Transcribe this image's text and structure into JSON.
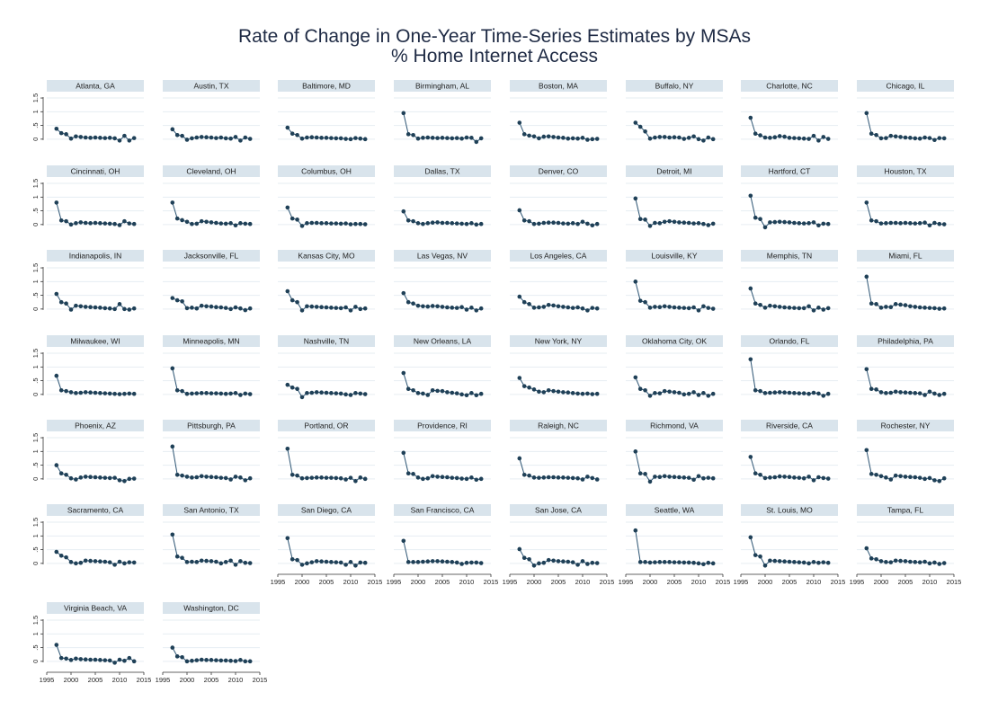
{
  "title_line1": "Rate of Change in One-Year Time-Series Estimates by MSAs",
  "title_line2": "% Home Internet Access",
  "colors": {
    "marker": "#1f4057",
    "line": "#2c5473",
    "strip": "#d9e4ec",
    "grid": "#e6edf2",
    "axis": "#333333"
  },
  "chart_data": {
    "type": "line",
    "layout": "small-multiples",
    "title": "Rate of Change in One-Year Time-Series Estimates by MSAs",
    "subtitle": "% Home Internet Access",
    "x": [
      1997,
      1998,
      1999,
      2000,
      2001,
      2002,
      2003,
      2004,
      2005,
      2006,
      2007,
      2008,
      2009,
      2010,
      2011,
      2012,
      2013
    ],
    "xticks": [
      1995,
      2000,
      2005,
      2010,
      2015
    ],
    "xlim": [
      1995,
      2015
    ],
    "yticks": [
      0,
      0.5,
      1,
      1.5
    ],
    "ytick_labels": [
      "0",
      ".5",
      "1",
      "1.5"
    ],
    "ylim": [
      -0.3,
      1.6
    ],
    "grid": true,
    "panels": [
      {
        "name": "Atlanta, GA",
        "values": [
          0.38,
          0.22,
          0.18,
          0.02,
          0.1,
          0.08,
          0.06,
          0.05,
          0.06,
          0.05,
          0.04,
          0.05,
          0.03,
          -0.05,
          0.12,
          -0.05,
          0.04
        ]
      },
      {
        "name": "Austin, TX",
        "values": [
          0.36,
          0.15,
          0.12,
          -0.02,
          0.03,
          0.06,
          0.08,
          0.07,
          0.06,
          0.04,
          0.06,
          0.03,
          0.02,
          0.08,
          -0.05,
          0.06,
          0.01
        ]
      },
      {
        "name": "Baltimore, MD",
        "values": [
          0.42,
          0.2,
          0.15,
          0.02,
          0.06,
          0.07,
          0.06,
          0.05,
          0.05,
          0.04,
          0.03,
          0.03,
          0.01,
          0.0,
          0.04,
          0.02,
          0.0
        ]
      },
      {
        "name": "Birmingham, AL",
        "values": [
          0.95,
          0.18,
          0.15,
          0.02,
          0.05,
          0.06,
          0.05,
          0.04,
          0.05,
          0.04,
          0.03,
          0.04,
          0.02,
          0.06,
          0.05,
          -0.1,
          0.03
        ]
      },
      {
        "name": "Boston, MA",
        "values": [
          0.6,
          0.18,
          0.13,
          0.1,
          0.03,
          0.09,
          0.1,
          0.08,
          0.06,
          0.05,
          0.02,
          0.03,
          0.02,
          0.05,
          -0.02,
          0.0,
          0.01
        ]
      },
      {
        "name": "Buffalo, NY",
        "values": [
          0.6,
          0.45,
          0.28,
          0.02,
          0.06,
          0.08,
          0.08,
          0.06,
          0.07,
          0.06,
          0.01,
          0.05,
          0.1,
          0.0,
          -0.05,
          0.06,
          0.0
        ]
      },
      {
        "name": "Charlotte, NC",
        "values": [
          0.78,
          0.2,
          0.14,
          0.06,
          0.05,
          0.07,
          0.11,
          0.09,
          0.05,
          0.04,
          0.03,
          0.02,
          0.01,
          0.12,
          -0.05,
          0.08,
          0.01
        ]
      },
      {
        "name": "Chicago, IL",
        "values": [
          0.95,
          0.2,
          0.15,
          0.03,
          0.04,
          0.12,
          0.1,
          0.08,
          0.06,
          0.05,
          0.03,
          0.02,
          0.06,
          0.04,
          -0.03,
          0.04,
          0.03
        ]
      },
      {
        "name": "Cincinnati, OH",
        "values": [
          0.8,
          0.15,
          0.12,
          0.0,
          0.05,
          0.08,
          0.06,
          0.05,
          0.06,
          0.05,
          0.04,
          0.03,
          0.02,
          -0.02,
          0.12,
          0.04,
          0.02
        ]
      },
      {
        "name": "Cleveland, OH",
        "values": [
          0.8,
          0.22,
          0.16,
          0.1,
          0.02,
          0.03,
          0.12,
          0.1,
          0.08,
          0.06,
          0.04,
          0.03,
          0.05,
          -0.03,
          0.05,
          0.03,
          0.02
        ]
      },
      {
        "name": "Columbus, OH",
        "values": [
          0.62,
          0.22,
          0.18,
          -0.05,
          0.05,
          0.06,
          0.06,
          0.05,
          0.05,
          0.04,
          0.04,
          0.03,
          0.04,
          0.01,
          0.02,
          0.02,
          0.01
        ]
      },
      {
        "name": "Dallas, TX",
        "values": [
          0.48,
          0.15,
          0.12,
          0.05,
          0.02,
          0.05,
          0.07,
          0.08,
          0.06,
          0.06,
          0.05,
          0.04,
          0.03,
          0.02,
          0.05,
          0.0,
          0.02
        ]
      },
      {
        "name": "Denver, CO",
        "values": [
          0.52,
          0.15,
          0.12,
          0.02,
          0.03,
          0.06,
          0.07,
          0.07,
          0.06,
          0.04,
          0.03,
          0.05,
          0.02,
          0.1,
          0.03,
          -0.03,
          0.02
        ]
      },
      {
        "name": "Detroit, MI",
        "values": [
          0.95,
          0.2,
          0.18,
          -0.05,
          0.06,
          0.05,
          0.1,
          0.12,
          0.1,
          0.08,
          0.07,
          0.06,
          0.04,
          0.05,
          0.02,
          -0.02,
          0.03
        ]
      },
      {
        "name": "Hartford, CT",
        "values": [
          1.05,
          0.25,
          0.2,
          -0.1,
          0.08,
          0.09,
          0.1,
          0.09,
          0.08,
          0.06,
          0.05,
          0.04,
          0.05,
          0.08,
          -0.03,
          0.03,
          0.02
        ]
      },
      {
        "name": "Houston, TX",
        "values": [
          0.8,
          0.15,
          0.12,
          0.04,
          0.05,
          0.06,
          0.06,
          0.05,
          0.06,
          0.05,
          0.04,
          0.05,
          0.07,
          -0.03,
          0.06,
          0.02,
          0.01
        ]
      },
      {
        "name": "Indianapolis, IN",
        "values": [
          0.55,
          0.25,
          0.2,
          -0.02,
          0.12,
          0.1,
          0.08,
          0.07,
          0.06,
          0.05,
          0.03,
          0.02,
          0.0,
          0.18,
          0.0,
          -0.02,
          0.02
        ]
      },
      {
        "name": "Jacksonville, FL",
        "values": [
          0.4,
          0.32,
          0.28,
          0.03,
          0.05,
          0.02,
          0.12,
          0.1,
          0.09,
          0.07,
          0.06,
          0.04,
          0.0,
          0.06,
          0.02,
          -0.04,
          0.02
        ]
      },
      {
        "name": "Kansas City, MO",
        "values": [
          0.65,
          0.32,
          0.25,
          -0.05,
          0.1,
          0.09,
          0.08,
          0.07,
          0.06,
          0.05,
          0.04,
          0.03,
          0.06,
          -0.05,
          0.08,
          0.0,
          0.02
        ]
      },
      {
        "name": "Las Vegas, NV",
        "values": [
          0.58,
          0.25,
          0.2,
          0.12,
          0.1,
          0.09,
          0.11,
          0.1,
          0.08,
          0.06,
          0.05,
          0.04,
          0.07,
          -0.02,
          0.05,
          -0.05,
          0.02
        ]
      },
      {
        "name": "Los Angeles, CA",
        "values": [
          0.45,
          0.25,
          0.18,
          0.05,
          0.06,
          0.08,
          0.15,
          0.13,
          0.1,
          0.08,
          0.06,
          0.04,
          0.06,
          0.02,
          -0.05,
          0.04,
          0.02
        ]
      },
      {
        "name": "Louisville, KY",
        "values": [
          1.0,
          0.3,
          0.25,
          0.05,
          0.08,
          0.07,
          0.1,
          0.08,
          0.06,
          0.05,
          0.04,
          0.03,
          0.06,
          -0.05,
          0.1,
          0.04,
          0.01
        ]
      },
      {
        "name": "Memphis, TN",
        "values": [
          0.75,
          0.2,
          0.15,
          0.05,
          0.12,
          0.1,
          0.08,
          0.06,
          0.05,
          0.04,
          0.03,
          0.03,
          0.1,
          -0.05,
          0.05,
          -0.02,
          0.03
        ]
      },
      {
        "name": "Miami, FL",
        "values": [
          1.18,
          0.2,
          0.18,
          0.05,
          0.08,
          0.07,
          0.18,
          0.16,
          0.14,
          0.1,
          0.08,
          0.06,
          0.05,
          0.04,
          0.03,
          0.01,
          0.02
        ]
      },
      {
        "name": "Milwaukee, WI",
        "values": [
          0.68,
          0.15,
          0.12,
          0.08,
          0.05,
          0.06,
          0.08,
          0.07,
          0.06,
          0.05,
          0.04,
          0.03,
          0.02,
          0.01,
          0.02,
          0.03,
          0.02
        ]
      },
      {
        "name": "Minneapolis, MN",
        "values": [
          0.95,
          0.15,
          0.12,
          0.02,
          0.03,
          0.04,
          0.05,
          0.05,
          0.04,
          0.04,
          0.03,
          0.02,
          0.03,
          0.05,
          -0.02,
          0.03,
          0.01
        ]
      },
      {
        "name": "Nashville, TN",
        "values": [
          0.35,
          0.25,
          0.2,
          -0.1,
          0.05,
          0.06,
          0.08,
          0.07,
          0.06,
          0.05,
          0.04,
          0.03,
          0.0,
          -0.02,
          0.05,
          0.03,
          0.01
        ]
      },
      {
        "name": "New Orleans, LA",
        "values": [
          0.78,
          0.2,
          0.15,
          0.05,
          0.03,
          -0.02,
          0.15,
          0.13,
          0.12,
          0.08,
          0.06,
          0.04,
          0.0,
          -0.03,
          0.05,
          -0.03,
          0.02
        ]
      },
      {
        "name": "New York, NY",
        "values": [
          0.6,
          0.3,
          0.25,
          0.18,
          0.1,
          0.08,
          0.15,
          0.12,
          0.1,
          0.08,
          0.07,
          0.05,
          0.03,
          0.02,
          0.03,
          0.01,
          0.02
        ]
      },
      {
        "name": "Oklahoma City, OK",
        "values": [
          0.62,
          0.2,
          0.15,
          -0.05,
          0.05,
          0.04,
          0.12,
          0.1,
          0.08,
          0.06,
          0.0,
          0.02,
          0.08,
          -0.02,
          0.05,
          -0.05,
          0.02
        ]
      },
      {
        "name": "Orlando, FL",
        "values": [
          1.28,
          0.15,
          0.12,
          0.05,
          0.06,
          0.07,
          0.08,
          0.07,
          0.06,
          0.05,
          0.04,
          0.04,
          0.02,
          0.06,
          0.03,
          -0.05,
          0.02
        ]
      },
      {
        "name": "Philadelphia, PA",
        "values": [
          0.92,
          0.2,
          0.18,
          0.08,
          0.05,
          0.06,
          0.1,
          0.08,
          0.07,
          0.06,
          0.05,
          0.04,
          -0.02,
          0.1,
          0.03,
          -0.02,
          0.02
        ]
      },
      {
        "name": "Phoenix, AZ",
        "values": [
          0.5,
          0.2,
          0.15,
          0.02,
          -0.02,
          0.05,
          0.08,
          0.07,
          0.06,
          0.05,
          0.04,
          0.03,
          0.04,
          -0.05,
          -0.08,
          0.0,
          0.01
        ]
      },
      {
        "name": "Pittsburgh, PA",
        "values": [
          1.18,
          0.15,
          0.12,
          0.08,
          0.05,
          0.06,
          0.1,
          0.08,
          0.07,
          0.06,
          0.04,
          0.03,
          -0.02,
          0.08,
          0.05,
          -0.05,
          0.02
        ]
      },
      {
        "name": "Portland, OR",
        "values": [
          1.1,
          0.15,
          0.12,
          0.02,
          0.03,
          0.04,
          0.05,
          0.05,
          0.04,
          0.04,
          0.03,
          0.02,
          -0.02,
          0.04,
          -0.08,
          0.05,
          0.0
        ]
      },
      {
        "name": "Providence, RI",
        "values": [
          0.95,
          0.2,
          0.18,
          0.05,
          0.0,
          0.02,
          0.1,
          0.08,
          0.07,
          0.06,
          0.04,
          0.03,
          0.01,
          0.0,
          0.05,
          -0.03,
          0.0
        ]
      },
      {
        "name": "Raleigh, NC",
        "values": [
          0.75,
          0.15,
          0.12,
          0.05,
          0.04,
          0.05,
          0.06,
          0.06,
          0.05,
          0.05,
          0.04,
          0.03,
          0.02,
          -0.02,
          0.08,
          0.03,
          -0.02
        ]
      },
      {
        "name": "Richmond, VA",
        "values": [
          1.0,
          0.2,
          0.18,
          -0.1,
          0.08,
          0.07,
          0.1,
          0.08,
          0.07,
          0.06,
          0.05,
          0.04,
          -0.03,
          0.1,
          0.02,
          0.04,
          0.02
        ]
      },
      {
        "name": "Riverside, CA",
        "values": [
          0.8,
          0.2,
          0.15,
          0.03,
          0.05,
          0.06,
          0.09,
          0.08,
          0.07,
          0.05,
          0.04,
          0.02,
          0.08,
          -0.05,
          0.06,
          0.03,
          0.01
        ]
      },
      {
        "name": "Rochester, NY",
        "values": [
          1.05,
          0.18,
          0.15,
          0.1,
          0.05,
          -0.02,
          0.12,
          0.1,
          0.08,
          0.07,
          0.06,
          0.04,
          0.0,
          0.03,
          -0.05,
          -0.08,
          0.02
        ]
      },
      {
        "name": "Sacramento, CA",
        "values": [
          0.42,
          0.28,
          0.22,
          0.05,
          0.0,
          0.02,
          0.1,
          0.09,
          0.08,
          0.07,
          0.06,
          0.04,
          -0.05,
          0.06,
          0.0,
          0.04,
          0.03
        ]
      },
      {
        "name": "San Antonio, TX",
        "values": [
          1.05,
          0.25,
          0.2,
          0.05,
          0.06,
          0.05,
          0.1,
          0.09,
          0.08,
          0.06,
          0.0,
          0.05,
          0.1,
          -0.05,
          0.08,
          0.02,
          0.01
        ]
      },
      {
        "name": "San Diego, CA",
        "values": [
          0.92,
          0.15,
          0.12,
          -0.05,
          0.0,
          0.04,
          0.08,
          0.07,
          0.06,
          0.05,
          0.04,
          0.03,
          -0.05,
          0.05,
          -0.08,
          0.03,
          0.02
        ]
      },
      {
        "name": "San Francisco, CA",
        "values": [
          0.82,
          0.05,
          0.05,
          0.05,
          0.06,
          0.07,
          0.08,
          0.08,
          0.07,
          0.06,
          0.05,
          0.03,
          -0.02,
          0.02,
          0.03,
          0.03,
          0.01
        ]
      },
      {
        "name": "San Jose, CA",
        "values": [
          0.52,
          0.2,
          0.15,
          -0.08,
          0.0,
          0.02,
          0.12,
          0.1,
          0.08,
          0.07,
          0.06,
          0.04,
          -0.05,
          0.08,
          -0.02,
          0.02,
          0.01
        ]
      },
      {
        "name": "Seattle, WA",
        "values": [
          1.2,
          0.05,
          0.05,
          0.03,
          0.04,
          0.05,
          0.05,
          0.05,
          0.04,
          0.04,
          0.03,
          0.03,
          0.02,
          0.0,
          -0.03,
          0.02,
          0.0
        ]
      },
      {
        "name": "St. Louis, MO",
        "values": [
          0.95,
          0.3,
          0.25,
          -0.08,
          0.1,
          0.09,
          0.08,
          0.07,
          0.06,
          0.05,
          0.04,
          0.03,
          0.0,
          0.05,
          0.02,
          0.04,
          0.02
        ]
      },
      {
        "name": "Tampa, FL",
        "values": [
          0.55,
          0.18,
          0.15,
          0.08,
          0.05,
          0.04,
          0.1,
          0.09,
          0.08,
          0.06,
          0.05,
          0.04,
          0.06,
          0.0,
          0.03,
          -0.02,
          0.01
        ]
      },
      {
        "name": "Virginia Beach, VA",
        "values": [
          0.6,
          0.12,
          0.1,
          0.05,
          0.1,
          0.08,
          0.07,
          0.06,
          0.06,
          0.05,
          0.04,
          0.03,
          -0.05,
          0.06,
          0.02,
          0.12,
          0.0
        ]
      },
      {
        "name": "Washington, DC",
        "values": [
          0.5,
          0.18,
          0.15,
          0.0,
          0.02,
          0.04,
          0.06,
          0.05,
          0.05,
          0.04,
          0.03,
          0.03,
          0.02,
          0.01,
          0.05,
          0.0,
          0.0
        ]
      }
    ]
  }
}
